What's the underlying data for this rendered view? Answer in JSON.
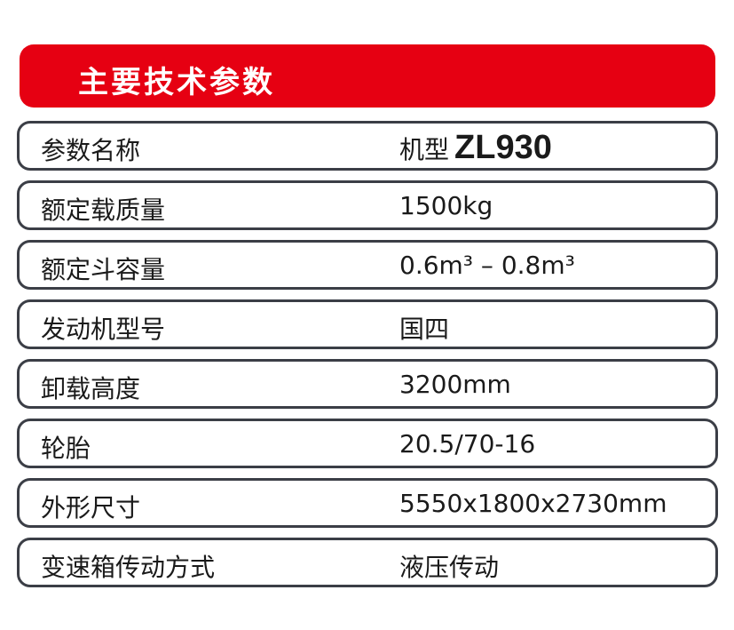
{
  "title": "主要技术参数",
  "accent_color": "#e60012",
  "header_row": {
    "label": "参数名称",
    "value_prefix": "机型",
    "model": "ZL930"
  },
  "rows": [
    {
      "label": "额定载质量",
      "value": "1500kg"
    },
    {
      "label": "额定斗容量",
      "value": "0.6m³ – 0.8m³"
    },
    {
      "label": "发动机型号",
      "value": "国四"
    },
    {
      "label": "卸载高度",
      "value": "3200mm"
    },
    {
      "label": "轮胎",
      "value": "20.5/70-16"
    },
    {
      "label": "外形尺寸",
      "value": "5550x1800x2730mm"
    },
    {
      "label": "变速箱传动方式",
      "value": "液压传动"
    }
  ]
}
